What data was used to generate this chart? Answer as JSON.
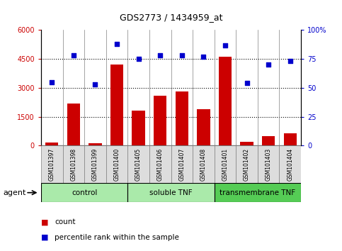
{
  "title": "GDS2773 / 1434959_at",
  "samples": [
    "GSM101397",
    "GSM101398",
    "GSM101399",
    "GSM101400",
    "GSM101405",
    "GSM101406",
    "GSM101407",
    "GSM101408",
    "GSM101401",
    "GSM101402",
    "GSM101403",
    "GSM101404"
  ],
  "counts": [
    150,
    2200,
    120,
    4200,
    1800,
    2600,
    2800,
    1900,
    4600,
    180,
    500,
    650
  ],
  "percentiles": [
    55,
    78,
    53,
    88,
    75,
    78,
    78,
    77,
    87,
    54,
    70,
    73
  ],
  "groups": [
    {
      "label": "control",
      "start": 0,
      "end": 4
    },
    {
      "label": "soluble TNF",
      "start": 4,
      "end": 8
    },
    {
      "label": "transmembrane TNF",
      "start": 8,
      "end": 12
    }
  ],
  "group_colors": [
    "#aaeaaa",
    "#aaeaaa",
    "#55cc55"
  ],
  "bar_color": "#CC0000",
  "dot_color": "#0000CC",
  "ylim_left": [
    0,
    6000
  ],
  "ylim_right": [
    0,
    100
  ],
  "yticks_left": [
    0,
    1500,
    3000,
    4500,
    6000
  ],
  "yticks_right": [
    0,
    25,
    50,
    75,
    100
  ],
  "right_tick_labels": [
    "0",
    "25",
    "50",
    "75",
    "100%"
  ],
  "background_color": "#ffffff",
  "agent_label": "agent",
  "legend_count_label": "count",
  "legend_pct_label": "percentile rank within the sample"
}
